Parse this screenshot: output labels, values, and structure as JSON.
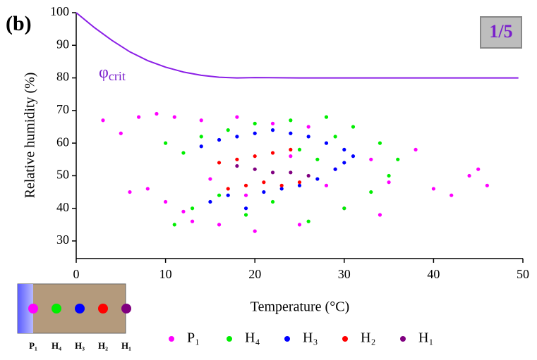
{
  "panel_label": "(b)",
  "badge": "1/5",
  "inset": {
    "labels": [
      "P₁",
      "H₄",
      "H₃",
      "H₂",
      "H₁"
    ]
  },
  "chart_data": {
    "type": "scatter",
    "x_label": "Temperature (°C)",
    "y_label": "Relative humidity (%)",
    "annotation": {
      "symbol": "φ",
      "subscript": "crit"
    },
    "xlim": [
      0,
      50
    ],
    "xticks": [
      0,
      10,
      20,
      30,
      40,
      50
    ],
    "ylim": [
      24.6,
      100
    ],
    "yticks": [
      30,
      40,
      50,
      60,
      70,
      80,
      90,
      100
    ],
    "series": [
      {
        "name": "P₁",
        "color": "#ff00ff",
        "type": "scatter",
        "x": [
          3,
          5,
          7,
          9,
          11,
          14,
          18,
          22,
          26,
          8,
          10,
          13,
          16,
          20,
          25,
          30,
          35,
          40,
          45,
          46,
          38,
          33,
          28,
          6,
          12,
          15,
          19,
          24,
          29,
          34,
          42,
          44
        ],
        "values": [
          67,
          63,
          68,
          69,
          68,
          67,
          68,
          66,
          65,
          46,
          42,
          36,
          35,
          33,
          35,
          40,
          48,
          46,
          52,
          47,
          58,
          55,
          47,
          45,
          39,
          49,
          44,
          56,
          52,
          38,
          44,
          50
        ]
      },
      {
        "name": "H₄",
        "color": "#00ee00",
        "type": "scatter",
        "x": [
          10,
          12,
          14,
          17,
          20,
          24,
          28,
          31,
          34,
          36,
          11,
          13,
          16,
          19,
          22,
          26,
          30,
          33,
          35,
          27,
          25,
          29
        ],
        "values": [
          60,
          57,
          62,
          64,
          66,
          67,
          68,
          65,
          60,
          55,
          35,
          40,
          44,
          38,
          42,
          36,
          40,
          45,
          50,
          55,
          58,
          62
        ]
      },
      {
        "name": "H₃",
        "color": "#0000ff",
        "type": "scatter",
        "x": [
          14,
          16,
          18,
          20,
          22,
          24,
          26,
          28,
          30,
          31,
          15,
          17,
          19,
          21,
          23,
          25,
          27,
          29,
          30
        ],
        "values": [
          59,
          61,
          62,
          63,
          64,
          63,
          62,
          60,
          58,
          56,
          42,
          44,
          40,
          45,
          46,
          47,
          49,
          52,
          54
        ]
      },
      {
        "name": "H₂",
        "color": "#ff0000",
        "type": "scatter",
        "x": [
          16,
          18,
          20,
          22,
          24,
          17,
          19,
          21,
          23,
          25
        ],
        "values": [
          54,
          55,
          56,
          57,
          58,
          46,
          47,
          48,
          47,
          48
        ]
      },
      {
        "name": "H₁",
        "color": "#800080",
        "type": "scatter",
        "x": [
          18,
          20,
          22,
          24,
          26
        ],
        "values": [
          53,
          52,
          51,
          51,
          50
        ]
      },
      {
        "color": "#8b1fe6",
        "type": "line",
        "x": [
          0,
          2,
          4,
          6,
          8,
          10,
          12,
          14,
          16,
          18,
          20,
          25,
          30,
          35,
          40,
          45,
          49.5
        ],
        "values": [
          100,
          95.5,
          91.5,
          88,
          85.3,
          83.3,
          81.8,
          80.8,
          80.2,
          80,
          80.1,
          80,
          80,
          80,
          80,
          80,
          80
        ]
      }
    ]
  }
}
